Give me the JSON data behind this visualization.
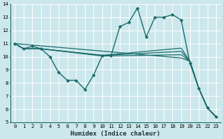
{
  "xlabel": "Humidex (Indice chaleur)",
  "bg_color": "#cce8ec",
  "grid_color": "#ffffff",
  "line_color": "#1a6b6b",
  "xlim": [
    -0.5,
    23.5
  ],
  "ylim": [
    5,
    14
  ],
  "xticks": [
    0,
    1,
    2,
    3,
    4,
    5,
    6,
    7,
    8,
    9,
    10,
    11,
    12,
    13,
    14,
    15,
    16,
    17,
    18,
    19,
    20,
    21,
    22,
    23
  ],
  "yticks": [
    5,
    6,
    7,
    8,
    9,
    10,
    11,
    12,
    13,
    14
  ],
  "tick_fontsize": 5.2,
  "xlabel_fontsize": 6.5,
  "series": [
    {
      "x": [
        0,
        1,
        2,
        3,
        4,
        5,
        6,
        7,
        8,
        9,
        10,
        11,
        12,
        13,
        14,
        15,
        16,
        17,
        18,
        19,
        20,
        21,
        22,
        23
      ],
      "y": [
        11,
        10.6,
        10.8,
        10.6,
        10.0,
        8.8,
        8.2,
        8.2,
        7.5,
        8.6,
        10.1,
        10.1,
        12.3,
        12.6,
        13.7,
        11.5,
        13.0,
        13.0,
        13.2,
        12.8,
        9.5,
        7.6,
        6.1,
        5.4
      ],
      "marker": "D",
      "ms": 2.2,
      "lw": 1.0
    },
    {
      "x": [
        0,
        1,
        2,
        3,
        10,
        19,
        20,
        21,
        22,
        23
      ],
      "y": [
        11,
        10.6,
        10.6,
        10.6,
        10.1,
        10.65,
        9.65,
        7.6,
        6.1,
        5.4
      ],
      "marker": null,
      "lw": 0.9
    },
    {
      "x": [
        0,
        1,
        2,
        3,
        10,
        19,
        20,
        21,
        22,
        23
      ],
      "y": [
        11,
        10.6,
        10.6,
        10.6,
        10.1,
        10.4,
        9.65,
        7.6,
        6.1,
        5.4
      ],
      "marker": null,
      "lw": 0.9
    },
    {
      "x": [
        0,
        1,
        2,
        3,
        10,
        19,
        20,
        21,
        22,
        23
      ],
      "y": [
        11,
        10.6,
        10.6,
        10.6,
        10.05,
        10.15,
        9.65,
        7.6,
        6.1,
        5.4
      ],
      "marker": null,
      "lw": 0.9
    },
    {
      "x": [
        0,
        19,
        20,
        21,
        22,
        23
      ],
      "y": [
        11,
        9.9,
        9.65,
        7.6,
        6.1,
        5.4
      ],
      "marker": null,
      "lw": 0.9
    }
  ]
}
